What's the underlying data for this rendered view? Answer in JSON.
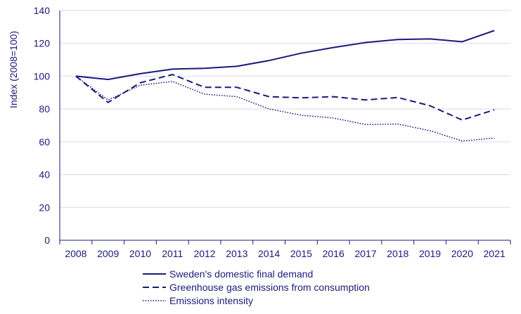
{
  "chart_data": {
    "type": "line",
    "title": "",
    "xlabel": "",
    "ylabel": "Index (2008=100)",
    "ylim": [
      0,
      140
    ],
    "yticks": [
      0,
      20,
      40,
      60,
      80,
      100,
      120,
      140
    ],
    "categories": [
      "2008",
      "2009",
      "2010",
      "2011",
      "2012",
      "2013",
      "2014",
      "2015",
      "2016",
      "2017",
      "2018",
      "2019",
      "2020",
      "2021"
    ],
    "grid": true,
    "legend_position": "bottom",
    "series": [
      {
        "name": "Sweden's domestic final demand",
        "style": "solid",
        "values": [
          100,
          98,
          101.5,
          104.3,
          104.8,
          106,
          109.5,
          114,
          117.5,
          120.5,
          122.3,
          122.7,
          121,
          127.8
        ]
      },
      {
        "name": "Greenhouse gas emissions from consumption",
        "style": "dashed",
        "values": [
          100,
          84,
          96,
          101,
          93.2,
          93.2,
          87.5,
          86.8,
          87.5,
          85.5,
          87,
          82,
          73.3,
          79.5
        ]
      },
      {
        "name": "Emissions intensity",
        "style": "dotted",
        "values": [
          100,
          85.5,
          94.5,
          96.8,
          89,
          87.5,
          80,
          76.2,
          74.5,
          70.5,
          70.8,
          66.8,
          60.5,
          62.3
        ]
      }
    ],
    "colors": {
      "line": "#1a1a7a",
      "grid": "#d9d9ee",
      "text": "#1a1a7a"
    }
  }
}
